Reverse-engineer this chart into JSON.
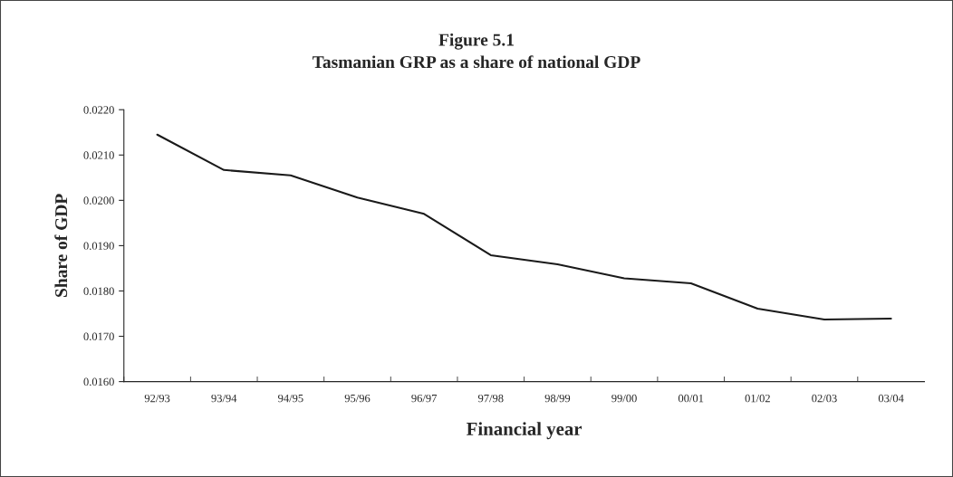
{
  "chart_data": {
    "type": "line",
    "title": "Figure 5.1\nTasmanian GRP as a share of national GDP",
    "xlabel": "Financial year",
    "ylabel": "Share of GDP",
    "categories": [
      "92/93",
      "93/94",
      "94/95",
      "95/96",
      "96/97",
      "97/98",
      "98/99",
      "99/00",
      "00/01",
      "01/02",
      "02/03",
      "03/04"
    ],
    "series": [
      {
        "color": "#1a1a1a",
        "values": [
          0.02145,
          0.02067,
          0.02055,
          0.02006,
          0.0197,
          0.01879,
          0.01859,
          0.01828,
          0.01817,
          0.01761,
          0.01737,
          0.01739
        ]
      }
    ],
    "ylim": [
      0.016,
      0.022
    ],
    "yticks": [
      {
        "value": 0.016,
        "label": "0.0160"
      },
      {
        "value": 0.017,
        "label": "0.0170"
      },
      {
        "value": 0.018,
        "label": "0.0180"
      },
      {
        "value": 0.019,
        "label": "0.0190"
      },
      {
        "value": 0.02,
        "label": "0.0200"
      },
      {
        "value": 0.021,
        "label": "0.0210"
      },
      {
        "value": 0.022,
        "label": "0.0220"
      }
    ],
    "grid": false,
    "legend": false,
    "marker": "none",
    "line_style": "solid"
  }
}
